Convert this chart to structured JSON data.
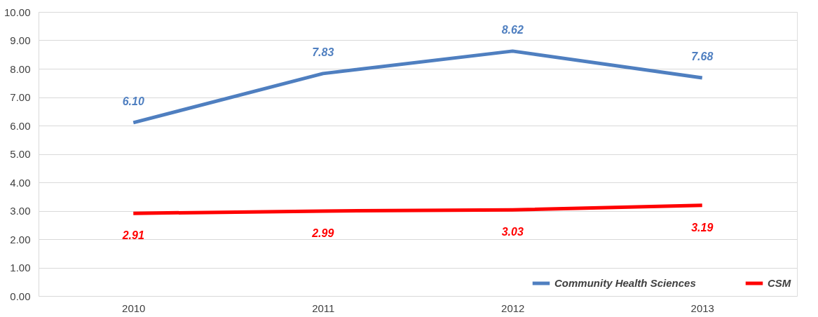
{
  "chart_data": {
    "type": "line",
    "categories": [
      "2010",
      "2011",
      "2012",
      "2013"
    ],
    "series": [
      {
        "name": "Community Health Sciences",
        "color": "#4f7fc0",
        "values": [
          6.1,
          7.83,
          8.62,
          7.68
        ],
        "value_labels": [
          "6.10",
          "7.83",
          "8.62",
          "7.68"
        ]
      },
      {
        "name": "CSM",
        "color": "#ff0000",
        "values": [
          2.91,
          2.99,
          3.03,
          3.19
        ],
        "value_labels": [
          "2.91",
          "2.99",
          "3.03",
          "3.19"
        ]
      }
    ],
    "ylim": [
      0,
      10
    ],
    "yticks": [
      {
        "value": 0,
        "label": "0.00"
      },
      {
        "value": 1,
        "label": "1.00"
      },
      {
        "value": 2,
        "label": "2.00"
      },
      {
        "value": 3,
        "label": "3.00"
      },
      {
        "value": 4,
        "label": "4.00"
      },
      {
        "value": 5,
        "label": "5.00"
      },
      {
        "value": 6,
        "label": "6.00"
      },
      {
        "value": 7,
        "label": "7.00"
      },
      {
        "value": 8,
        "label": "8.00"
      },
      {
        "value": 9,
        "label": "9.00"
      },
      {
        "value": 10,
        "label": "10.00"
      }
    ],
    "grid": "y",
    "legend": "bottom right",
    "marker": "none",
    "line_style": "solid"
  }
}
